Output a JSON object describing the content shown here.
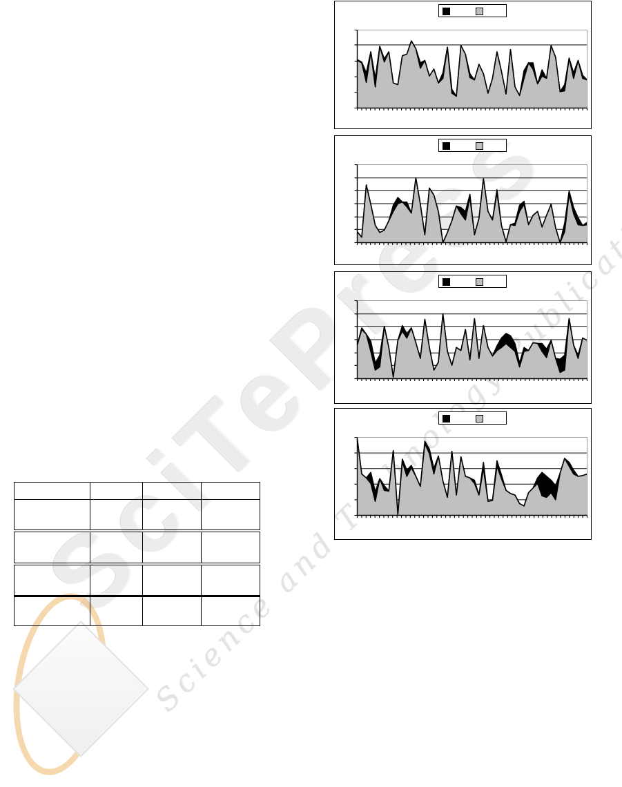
{
  "page": {
    "background": "#ffffff"
  },
  "watermark": {
    "brand": "SciTePress",
    "tagline": "Science and Technology Publications",
    "text_color": "#ececec",
    "logo_ellipse_color": "#eeb15f",
    "logo_diamond_color": "#f4f4f4"
  },
  "table": {
    "columns": 4,
    "rows": [
      [
        "",
        "",
        "",
        ""
      ],
      [
        "",
        "",
        "",
        ""
      ],
      [
        "",
        "",
        "",
        ""
      ],
      [
        "",
        "",
        "",
        ""
      ],
      [
        "",
        "",
        "",
        ""
      ]
    ]
  },
  "chart_data": [
    {
      "type": "area",
      "title": "",
      "xlabel": "",
      "ylabel": "",
      "ylim": [
        0,
        100
      ],
      "grid": true,
      "legend": {
        "position": "top",
        "labels": [
          "",
          ""
        ]
      },
      "gridlines": [
        81
      ],
      "y_ticks": [
        0,
        20,
        40,
        60,
        81,
        100
      ],
      "x_tick_count": 53,
      "series": [
        {
          "name": "series-black",
          "color": "#000000",
          "values": [
            62,
            59,
            45,
            72,
            38,
            79,
            63,
            72,
            32,
            30,
            67,
            69,
            86,
            76,
            58,
            61,
            41,
            50,
            32,
            45,
            78,
            24,
            15,
            80,
            69,
            44,
            36,
            56,
            44,
            19,
            38,
            72,
            47,
            18,
            75,
            27,
            16,
            48,
            58,
            58,
            31,
            49,
            38,
            80,
            65,
            21,
            30,
            64,
            45,
            61,
            42,
            36
          ]
        },
        {
          "name": "series-gray",
          "color": "#c0c0c0",
          "values": [
            61,
            58,
            33,
            72,
            27,
            79,
            59,
            72,
            32,
            30,
            67,
            69,
            86,
            76,
            51,
            61,
            41,
            50,
            32,
            38,
            78,
            19,
            15,
            80,
            69,
            39,
            36,
            56,
            44,
            19,
            38,
            72,
            47,
            18,
            75,
            27,
            16,
            38,
            58,
            50,
            31,
            41,
            38,
            80,
            65,
            21,
            22,
            64,
            38,
            61,
            38,
            36
          ]
        }
      ]
    },
    {
      "type": "area",
      "title": "",
      "xlabel": "",
      "ylabel": "",
      "ylim": [
        0,
        100
      ],
      "grid": true,
      "legend": {
        "position": "top",
        "labels": [
          "",
          ""
        ]
      },
      "gridlines": [
        17,
        33,
        50,
        67,
        83
      ],
      "y_ticks": [
        0,
        17,
        33,
        50,
        67,
        83,
        100
      ],
      "x_tick_count": 53,
      "series": [
        {
          "name": "series-black",
          "color": "#000000",
          "values": [
            14,
            7,
            74,
            49,
            22,
            13,
            16,
            28,
            48,
            58,
            52,
            52,
            38,
            83,
            49,
            10,
            70,
            61,
            40,
            0,
            13,
            28,
            47,
            45,
            40,
            62,
            10,
            31,
            82,
            40,
            29,
            68,
            22,
            1,
            23,
            25,
            48,
            53,
            23,
            35,
            40,
            20,
            35,
            49,
            19,
            0,
            25,
            66,
            45,
            32,
            22,
            26
          ]
        },
        {
          "name": "series-gray",
          "color": "#c0c0c0",
          "values": [
            14,
            7,
            74,
            49,
            22,
            13,
            16,
            28,
            40,
            50,
            52,
            46,
            38,
            83,
            49,
            10,
            70,
            61,
            40,
            0,
            13,
            28,
            47,
            37,
            29,
            58,
            10,
            31,
            82,
            40,
            29,
            64,
            22,
            1,
            23,
            22,
            40,
            49,
            23,
            35,
            40,
            20,
            35,
            49,
            19,
            0,
            14,
            62,
            37,
            23,
            22,
            23
          ]
        }
      ]
    },
    {
      "type": "area",
      "title": "",
      "xlabel": "",
      "ylabel": "",
      "ylim": [
        0,
        100
      ],
      "grid": true,
      "legend": {
        "position": "top",
        "labels": [
          "",
          ""
        ]
      },
      "gridlines": [
        17,
        33,
        50,
        67,
        83
      ],
      "y_ticks": [
        0,
        17,
        33,
        50,
        67,
        83,
        100
      ],
      "x_tick_count": 53,
      "series": [
        {
          "name": "series-black",
          "color": "#000000",
          "values": [
            43,
            65,
            57,
            48,
            20,
            30,
            67,
            40,
            2,
            49,
            68,
            58,
            65,
            46,
            26,
            76,
            40,
            11,
            21,
            83,
            35,
            17,
            40,
            36,
            63,
            24,
            77,
            26,
            68,
            40,
            29,
            42,
            52,
            58,
            55,
            45,
            20,
            40,
            36,
            46,
            45,
            45,
            38,
            49,
            26,
            25,
            30,
            77,
            43,
            30,
            52,
            49
          ]
        },
        {
          "name": "series-gray",
          "color": "#c0c0c0",
          "values": [
            43,
            63,
            57,
            35,
            11,
            15,
            67,
            40,
            2,
            49,
            61,
            52,
            65,
            46,
            26,
            76,
            40,
            11,
            21,
            83,
            35,
            17,
            40,
            36,
            63,
            24,
            77,
            26,
            68,
            40,
            29,
            36,
            40,
            45,
            40,
            35,
            15,
            35,
            36,
            46,
            45,
            35,
            27,
            49,
            26,
            8,
            11,
            77,
            43,
            26,
            52,
            49
          ]
        }
      ]
    },
    {
      "type": "area",
      "title": "",
      "xlabel": "",
      "ylabel": "",
      "ylim": [
        0,
        100
      ],
      "grid": true,
      "legend": {
        "position": "top",
        "labels": [
          "",
          ""
        ]
      },
      "gridlines": [
        20,
        40,
        60,
        80
      ],
      "y_ticks": [
        0,
        20,
        40,
        60,
        80,
        100
      ],
      "x_tick_count": 53,
      "series": [
        {
          "name": "series-black",
          "color": "#000000",
          "values": [
            98,
            53,
            48,
            55,
            30,
            47,
            38,
            31,
            83,
            1,
            72,
            58,
            64,
            50,
            37,
            95,
            85,
            60,
            76,
            44,
            23,
            82,
            26,
            75,
            50,
            48,
            45,
            26,
            68,
            18,
            19,
            70,
            52,
            32,
            28,
            26,
            15,
            12,
            29,
            35,
            48,
            55,
            50,
            45,
            38,
            54,
            73,
            68,
            58,
            50,
            51,
            53
          ]
        },
        {
          "name": "series-gray",
          "color": "#c0c0c0",
          "values": [
            98,
            53,
            48,
            41,
            18,
            47,
            32,
            31,
            83,
            1,
            69,
            50,
            61,
            50,
            37,
            92,
            79,
            53,
            76,
            44,
            23,
            82,
            26,
            75,
            50,
            48,
            41,
            26,
            60,
            18,
            19,
            63,
            47,
            32,
            28,
            26,
            15,
            12,
            29,
            35,
            41,
            25,
            23,
            29,
            20,
            54,
            73,
            63,
            53,
            50,
            51,
            53
          ]
        }
      ]
    }
  ]
}
